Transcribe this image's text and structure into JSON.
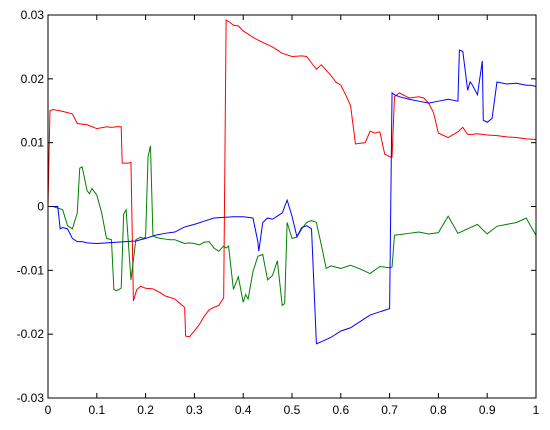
{
  "chart_data": {
    "type": "line",
    "title": "",
    "xlabel": "",
    "ylabel": "",
    "xlim": [
      0,
      1
    ],
    "ylim": [
      -0.03,
      0.03
    ],
    "grid": false,
    "legend": "none",
    "x_ticks": [
      0,
      0.1,
      0.2,
      0.3,
      0.4,
      0.5,
      0.6,
      0.7,
      0.8,
      0.9,
      1
    ],
    "x_tick_labels": [
      "0",
      "0.1",
      "0.2",
      "0.3",
      "0.4",
      "0.5",
      "0.6",
      "0.7",
      "0.8",
      "0.9",
      "1"
    ],
    "y_ticks": [
      -0.03,
      -0.02,
      -0.01,
      0,
      0.01,
      0.02,
      0.03
    ],
    "y_tick_labels": [
      "-0.03",
      "-0.02",
      "-0.01",
      "0",
      "0.01",
      "0.02",
      "0.03"
    ],
    "series": [
      {
        "color": "#ff0000",
        "x": [
          0,
          0.004,
          0.01,
          0.03,
          0.05,
          0.06,
          0.08,
          0.1,
          0.12,
          0.13,
          0.14,
          0.15,
          0.152,
          0.165,
          0.17,
          0.175,
          0.18,
          0.182,
          0.19,
          0.2,
          0.215,
          0.22,
          0.23,
          0.24,
          0.26,
          0.28,
          0.282,
          0.29,
          0.3,
          0.31,
          0.32,
          0.33,
          0.34,
          0.35,
          0.36,
          0.365,
          0.37,
          0.38,
          0.39,
          0.4,
          0.42,
          0.44,
          0.46,
          0.48,
          0.5,
          0.52,
          0.53,
          0.54,
          0.55,
          0.56,
          0.58,
          0.59,
          0.6,
          0.61,
          0.62,
          0.63,
          0.64,
          0.65,
          0.66,
          0.67,
          0.68,
          0.69,
          0.7,
          0.705,
          0.71,
          0.72,
          0.74,
          0.76,
          0.77,
          0.78,
          0.79,
          0.8,
          0.82,
          0.84,
          0.85,
          0.86,
          0.87,
          0.88,
          0.9,
          0.92,
          0.94,
          0.96,
          0.98,
          1
        ],
        "y": [
          0,
          0.015,
          0.0152,
          0.0149,
          0.0145,
          0.013,
          0.0128,
          0.0122,
          0.0125,
          0.0124,
          0.0125,
          0.0125,
          0.0068,
          0.0068,
          0.0069,
          -0.0148,
          -0.0135,
          -0.013,
          -0.0125,
          -0.0128,
          -0.0129,
          -0.0131,
          -0.0135,
          -0.014,
          -0.0145,
          -0.0158,
          -0.0203,
          -0.0204,
          -0.0195,
          -0.0185,
          -0.0172,
          -0.0162,
          -0.0158,
          -0.0155,
          -0.0143,
          0.0292,
          0.029,
          0.0284,
          0.0283,
          0.0275,
          0.0265,
          0.0257,
          0.025,
          0.024,
          0.0235,
          0.0236,
          0.0235,
          0.0225,
          0.0215,
          0.0222,
          0.0205,
          0.0195,
          0.019,
          0.0175,
          0.0158,
          0.0098,
          0.0099,
          0.01,
          0.0118,
          0.0115,
          0.0117,
          0.0082,
          0.0078,
          0.0077,
          0.0172,
          0.0178,
          0.017,
          0.0172,
          0.017,
          0.0162,
          0.0147,
          0.0115,
          0.0108,
          0.0117,
          0.0124,
          0.0113,
          0.0113,
          0.0114,
          0.0112,
          0.0111,
          0.0109,
          0.0108,
          0.0106,
          0.0105
        ]
      },
      {
        "color": "#008000",
        "x": [
          0,
          0.01,
          0.03,
          0.04,
          0.05,
          0.06,
          0.065,
          0.07,
          0.08,
          0.085,
          0.09,
          0.1,
          0.11,
          0.12,
          0.13,
          0.135,
          0.14,
          0.15,
          0.155,
          0.16,
          0.17,
          0.18,
          0.19,
          0.195,
          0.2,
          0.205,
          0.21,
          0.215,
          0.22,
          0.23,
          0.24,
          0.25,
          0.26,
          0.27,
          0.28,
          0.29,
          0.3,
          0.31,
          0.32,
          0.33,
          0.34,
          0.35,
          0.36,
          0.365,
          0.37,
          0.38,
          0.39,
          0.4,
          0.405,
          0.41,
          0.42,
          0.43,
          0.44,
          0.45,
          0.46,
          0.47,
          0.48,
          0.485,
          0.49,
          0.5,
          0.51,
          0.52,
          0.53,
          0.54,
          0.55,
          0.56,
          0.57,
          0.58,
          0.6,
          0.62,
          0.64,
          0.66,
          0.68,
          0.7,
          0.705,
          0.71,
          0.72,
          0.74,
          0.76,
          0.78,
          0.8,
          0.82,
          0.84,
          0.86,
          0.88,
          0.9,
          0.92,
          0.94,
          0.96,
          0.98,
          0.99,
          1
        ],
        "y": [
          0,
          0,
          -0.0005,
          -0.003,
          -0.0035,
          -0.001,
          0.006,
          0.0062,
          0.0025,
          0.002,
          0.0028,
          0.0018,
          -0.001,
          -0.005,
          -0.0052,
          -0.013,
          -0.0132,
          -0.0128,
          -0.0012,
          -0.0005,
          -0.0115,
          -0.0052,
          -0.0048,
          -0.005,
          -0.0048,
          0.0078,
          0.0095,
          -0.0045,
          -0.0048,
          -0.005,
          -0.0051,
          -0.0052,
          -0.0052,
          -0.0055,
          -0.0058,
          -0.0057,
          -0.0058,
          -0.006,
          -0.0056,
          -0.0055,
          -0.0065,
          -0.007,
          -0.0062,
          -0.0065,
          -0.0062,
          -0.013,
          -0.011,
          -0.015,
          -0.0138,
          -0.0145,
          -0.0102,
          -0.0078,
          -0.0075,
          -0.0115,
          -0.0108,
          -0.0085,
          -0.0155,
          -0.0152,
          -0.0025,
          -0.005,
          -0.0048,
          -0.0035,
          -0.0025,
          -0.0022,
          -0.0025,
          -0.006,
          -0.0097,
          -0.0093,
          -0.0097,
          -0.0092,
          -0.0098,
          -0.0105,
          -0.0094,
          -0.0096,
          -0.0095,
          -0.0045,
          -0.0044,
          -0.0042,
          -0.004,
          -0.0043,
          -0.0041,
          -0.0015,
          -0.0042,
          -0.0035,
          -0.0028,
          -0.0043,
          -0.0031,
          -0.0028,
          -0.0025,
          -0.0018,
          -0.0032,
          -0.0045
        ]
      },
      {
        "color": "#0000ff",
        "x": [
          0,
          0.01,
          0.02,
          0.025,
          0.03,
          0.04,
          0.05,
          0.06,
          0.07,
          0.08,
          0.1,
          0.12,
          0.14,
          0.16,
          0.18,
          0.2,
          0.22,
          0.24,
          0.26,
          0.28,
          0.3,
          0.32,
          0.34,
          0.36,
          0.38,
          0.4,
          0.42,
          0.43,
          0.432,
          0.44,
          0.45,
          0.46,
          0.47,
          0.48,
          0.49,
          0.5,
          0.51,
          0.52,
          0.53,
          0.54,
          0.55,
          0.56,
          0.58,
          0.6,
          0.62,
          0.64,
          0.66,
          0.68,
          0.7,
          0.705,
          0.71,
          0.72,
          0.74,
          0.76,
          0.78,
          0.8,
          0.82,
          0.84,
          0.843,
          0.85,
          0.86,
          0.865,
          0.87,
          0.88,
          0.89,
          0.892,
          0.9,
          0.91,
          0.92,
          0.94,
          0.96,
          0.98,
          0.99,
          1
        ],
        "y": [
          0,
          0,
          0,
          -0.0035,
          -0.0033,
          -0.0035,
          -0.005,
          -0.0055,
          -0.0055,
          -0.0057,
          -0.0058,
          -0.0057,
          -0.0056,
          -0.0055,
          -0.0054,
          -0.005,
          -0.0045,
          -0.0042,
          -0.004,
          -0.0032,
          -0.0028,
          -0.0023,
          -0.0018,
          -0.0017,
          -0.0016,
          -0.0016,
          -0.0018,
          -0.0055,
          -0.007,
          -0.0025,
          -0.0018,
          -0.002,
          -0.0015,
          -0.001,
          0.001,
          -0.0015,
          -0.0047,
          -0.0033,
          -0.003,
          -0.0035,
          -0.0215,
          -0.0212,
          -0.0205,
          -0.0195,
          -0.019,
          -0.018,
          -0.017,
          -0.0165,
          -0.016,
          0.0178,
          0.0175,
          0.0172,
          0.0168,
          0.0165,
          0.0162,
          0.0165,
          0.0168,
          0.0165,
          0.0245,
          0.0243,
          0.0182,
          0.0195,
          0.019,
          0.0175,
          0.0228,
          0.0135,
          0.0132,
          0.0138,
          0.0195,
          0.0192,
          0.0193,
          0.019,
          0.019,
          0.0188
        ]
      }
    ]
  }
}
